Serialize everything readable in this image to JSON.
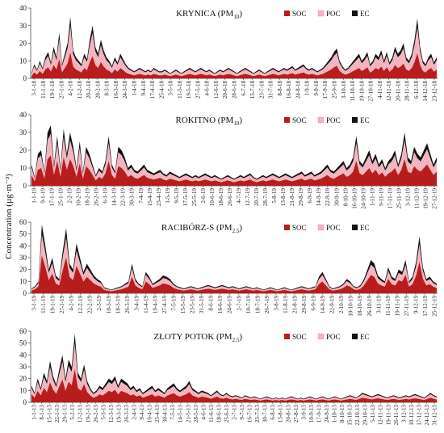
{
  "figure": {
    "ylabel_html": "Concentration (µg·m⁻³)"
  },
  "chart_data": [
    {
      "type": "area",
      "stacked": true,
      "title": "KRYNICA (PM",
      "title_sub": "10",
      "title_close": ")",
      "ylim": [
        0,
        40
      ],
      "yticks": [
        0,
        10,
        20,
        30,
        40
      ],
      "legend": [
        {
          "name": "SOC",
          "color": "#b81d1d"
        },
        {
          "name": "POC",
          "color": "#f4b9c2",
          "hatched": true
        },
        {
          "name": "EC",
          "color": "#111111"
        }
      ],
      "x_labels": [
        "3-1-18",
        "11-1-18",
        "19-1-18",
        "27-1-18",
        "4-2-18",
        "12-2-18",
        "20-2-18",
        "28-2-18",
        "8-3-18",
        "16-3-18",
        "24-3-18",
        "1-4-18",
        "9-4-18",
        "17-4-18",
        "25-4-18",
        "3-5-18",
        "11-5-18",
        "19-5-18",
        "27-5-18",
        "4-6-18",
        "12-6-18",
        "20-6-18",
        "28-6-18",
        "6-7-18",
        "15-7-18",
        "23-7-18",
        "31-7-18",
        "8-8-18",
        "16-8-18",
        "24-8-18",
        "1-9-18",
        "9-9-18",
        "17-9-18",
        "25-9-18",
        "3-10-18",
        "11-10-18",
        "19-10-18",
        "27-10-18",
        "4-11-18",
        "12-11-18",
        "20-11-18",
        "28-11-18",
        "6-12-18",
        "14-12-18",
        "23-12-18"
      ],
      "total_profile": [
        3,
        8,
        5,
        10,
        6,
        12,
        15,
        9,
        18,
        12,
        26,
        8,
        14,
        20,
        35,
        16,
        12,
        10,
        8,
        14,
        11,
        22,
        30,
        18,
        14,
        22,
        16,
        12,
        10,
        7,
        12,
        9,
        14,
        11,
        8,
        6,
        5,
        4,
        5,
        6,
        5,
        4,
        5,
        4,
        6,
        5,
        4,
        4,
        5,
        4,
        3,
        4,
        5,
        4,
        3,
        4,
        5,
        6,
        5,
        4,
        5,
        6,
        5,
        4,
        5,
        4,
        3,
        4,
        5,
        4,
        5,
        6,
        5,
        4,
        3,
        4,
        5,
        6,
        5,
        4,
        3,
        4,
        5,
        4,
        3,
        4,
        5,
        6,
        5,
        4,
        5,
        6,
        5,
        6,
        7,
        5,
        6,
        7,
        8,
        6,
        5,
        6,
        5,
        4,
        5,
        6,
        8,
        10,
        12,
        15,
        17,
        10,
        7,
        5,
        6,
        8,
        10,
        12,
        14,
        10,
        12,
        15,
        8,
        10,
        14,
        12,
        16,
        10,
        15,
        9,
        12,
        18,
        14,
        16,
        20,
        12,
        10,
        14,
        22,
        34,
        18,
        10,
        8,
        12,
        14,
        9,
        12
      ]
    },
    {
      "type": "area",
      "stacked": true,
      "title": "ROKITNO (PM",
      "title_sub": "10",
      "title_close": ")",
      "ylim": [
        0,
        40
      ],
      "yticks": [
        0,
        10,
        20,
        30,
        40
      ],
      "legend": [
        {
          "name": "SOC",
          "color": "#b81d1d"
        },
        {
          "name": "POC",
          "color": "#f4b9c2",
          "hatched": true
        },
        {
          "name": "EC",
          "color": "#111111"
        }
      ],
      "x_labels": [
        "1-1-19",
        "9-1-19",
        "17-1-19",
        "25-1-19",
        "2-2-19",
        "10-2-19",
        "18-2-19",
        "26-2-19",
        "6-3-19",
        "14-3-19",
        "22-3-19",
        "30-3-19",
        "7-4-19",
        "15-4-19",
        "23-4-19",
        "1-5-19",
        "9-5-19",
        "17-5-19",
        "25-5-19",
        "2-6-19",
        "10-6-19",
        "18-6-19",
        "26-6-19",
        "4-7-19",
        "12-7-19",
        "20-7-19",
        "28-7-19",
        "5-8-19",
        "13-8-19",
        "21-8-19",
        "29-8-19",
        "6-9-19",
        "14-9-19",
        "22-9-19",
        "30-9-19",
        "8-10-19",
        "16-10-19",
        "24-10-19",
        "1-11-19",
        "9-11-19",
        "17-11-19",
        "25-11-19",
        "3-12-19",
        "11-12-19",
        "19-12-19",
        "27-12-19"
      ],
      "total_profile": [
        12,
        5,
        18,
        20,
        8,
        30,
        34,
        12,
        28,
        10,
        32,
        18,
        30,
        22,
        10,
        25,
        8,
        22,
        18,
        12,
        6,
        10,
        8,
        14,
        28,
        12,
        8,
        22,
        20,
        16,
        10,
        12,
        9,
        8,
        10,
        12,
        9,
        8,
        7,
        8,
        9,
        7,
        6,
        8,
        7,
        6,
        5,
        6,
        7,
        6,
        5,
        6,
        5,
        6,
        7,
        6,
        5,
        6,
        5,
        4,
        5,
        6,
        5,
        4,
        5,
        6,
        5,
        6,
        7,
        5,
        4,
        5,
        6,
        5,
        6,
        7,
        6,
        5,
        6,
        7,
        6,
        5,
        6,
        7,
        8,
        6,
        7,
        8,
        6,
        7,
        8,
        10,
        12,
        9,
        8,
        10,
        12,
        14,
        10,
        12,
        16,
        28,
        14,
        12,
        16,
        20,
        14,
        18,
        12,
        15,
        10,
        14,
        16,
        20,
        12,
        18,
        30,
        16,
        14,
        22,
        18,
        16,
        20,
        24,
        18,
        12,
        16
      ]
    },
    {
      "type": "area",
      "stacked": true,
      "title": "RACIBÓRZ-S (PM",
      "title_sub": "2.5",
      "title_close": ")",
      "ylim": [
        0,
        60
      ],
      "yticks": [
        0,
        10,
        20,
        30,
        40,
        50,
        60
      ],
      "legend": [
        {
          "name": "SOC",
          "color": "#b81d1d"
        },
        {
          "name": "POC",
          "color": "#f4b9c2",
          "hatched": true
        },
        {
          "name": "EC",
          "color": "#111111"
        }
      ],
      "x_labels": [
        "3-1-19",
        "11-1-19",
        "19-1-19",
        "27-1-19",
        "4-2-19",
        "12-2-19",
        "22-2-19",
        "2-3-19",
        "10-3-19",
        "18-3-19",
        "26-3-19",
        "3-4-19",
        "11-4-19",
        "19-4-19",
        "27-4-19",
        "7-5-19",
        "15-5-19",
        "23-5-19",
        "31-5-19",
        "8-6-19",
        "16-6-19",
        "24-6-19",
        "2-7-19",
        "10-7-19",
        "18-7-19",
        "26-7-19",
        "3-8-19",
        "11-8-19",
        "21-8-19",
        "29-8-19",
        "6-9-19",
        "14-9-19",
        "22-9-19",
        "2-10-19",
        "10-10-19",
        "18-10-19",
        "26-10-19",
        "3-11-19",
        "11-11-19",
        "19-11-19",
        "27-11-19",
        "9-12-19",
        "17-12-19",
        "25-12-19"
      ],
      "total_profile": [
        4,
        6,
        10,
        58,
        40,
        20,
        30,
        15,
        12,
        35,
        55,
        25,
        20,
        42,
        30,
        18,
        25,
        20,
        15,
        12,
        10,
        5,
        4,
        3,
        4,
        5,
        6,
        8,
        10,
        25,
        12,
        8,
        6,
        18,
        14,
        8,
        10,
        12,
        15,
        14,
        12,
        8,
        6,
        5,
        4,
        5,
        6,
        5,
        4,
        5,
        6,
        7,
        6,
        5,
        6,
        7,
        6,
        5,
        6,
        5,
        4,
        5,
        6,
        5,
        4,
        5,
        4,
        3,
        4,
        5,
        4,
        3,
        4,
        5,
        4,
        3,
        4,
        5,
        6,
        5,
        4,
        5,
        6,
        14,
        18,
        12,
        6,
        4,
        5,
        6,
        8,
        12,
        10,
        6,
        5,
        7,
        12,
        20,
        28,
        25,
        15,
        12,
        10,
        22,
        14,
        12,
        20,
        18,
        28,
        10,
        14,
        26,
        48,
        22,
        12,
        14,
        10,
        8
      ]
    },
    {
      "type": "area",
      "stacked": true,
      "title": "ZŁOTY POTOK (PM",
      "title_sub": "2.5",
      "title_close": ")",
      "ylim": [
        0,
        60
      ],
      "yticks": [
        0,
        10,
        20,
        30,
        40,
        50,
        60
      ],
      "legend": [
        {
          "name": "SOC",
          "color": "#b81d1d"
        },
        {
          "name": "POC",
          "color": "#f4b9c2",
          "hatched": true
        },
        {
          "name": "EC",
          "color": "#111111"
        }
      ],
      "x_labels": [
        "1-1-13",
        "8-1-13",
        "15-1-13",
        "22-1-13",
        "29-1-13",
        "5-2-13",
        "12-2-13",
        "19-2-13",
        "26-2-13",
        "5-3-13",
        "12-3-13",
        "19-3-13",
        "26-3-13",
        "2-4-13",
        "9-4-13",
        "16-4-13",
        "23-4-13",
        "30-4-13",
        "7-5-13",
        "14-5-13",
        "21-5-13",
        "28-5-13",
        "4-6-13",
        "11-6-13",
        "18-6-13",
        "25-6-13",
        "2-7-13",
        "9-7-13",
        "16-7-13",
        "23-7-13",
        "30-7-13",
        "6-8-13",
        "13-8-13",
        "20-8-13",
        "27-8-13",
        "3-9-13",
        "10-9-13",
        "17-9-13",
        "24-9-13",
        "1-10-13",
        "8-10-13",
        "15-10-13",
        "22-10-13",
        "29-10-13",
        "5-11-13",
        "12-11-13",
        "19-11-13",
        "26-11-13",
        "3-12-13",
        "10-12-13",
        "17-12-13",
        "24-12-13",
        "31-12-13"
      ],
      "total_profile": [
        14,
        8,
        20,
        12,
        25,
        18,
        35,
        22,
        15,
        28,
        40,
        20,
        36,
        30,
        58,
        25,
        20,
        32,
        18,
        12,
        8,
        10,
        14,
        12,
        16,
        20,
        18,
        22,
        14,
        20,
        18,
        16,
        12,
        14,
        10,
        12,
        8,
        10,
        12,
        14,
        10,
        12,
        10,
        8,
        12,
        14,
        16,
        12,
        10,
        12,
        14,
        18,
        12,
        10,
        8,
        10,
        9,
        8,
        6,
        8,
        10,
        7,
        6,
        8,
        6,
        5,
        6,
        5,
        4,
        6,
        5,
        4,
        5,
        4,
        3,
        4,
        5,
        4,
        3,
        4,
        3,
        4,
        3,
        4,
        5,
        4,
        3,
        4,
        3,
        4,
        5,
        4,
        3,
        4,
        5,
        4,
        3,
        4,
        5,
        4,
        3,
        4,
        5,
        6,
        5,
        4,
        6,
        8,
        7,
        6,
        5,
        6,
        7,
        6,
        5,
        4,
        5,
        6,
        5,
        4,
        5,
        6,
        5,
        6,
        7,
        6,
        5,
        4,
        6,
        8,
        6,
        5
      ]
    }
  ]
}
